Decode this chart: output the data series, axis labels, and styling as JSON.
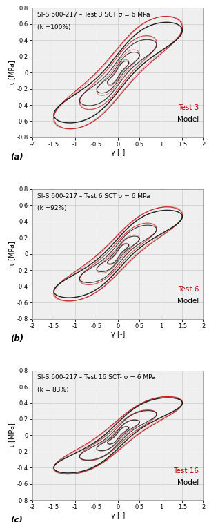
{
  "panels": [
    {
      "title_line1": "SI-S 600-217 – Test 3 SCT σ = 6 MPa",
      "title_line2": "(k =100%)",
      "test_label": "Test 3",
      "panel_label": "(a)",
      "max_tau_red": 0.56,
      "max_tau_black": 0.52,
      "belly_red": 0.55,
      "belly_black": 0.45,
      "k_shape_red": 1.8,
      "k_shape_black": 2.2
    },
    {
      "title_line1": "SI-S 600-217 – Test 6 SCT σ = 6 MPa",
      "title_line2": "(k =92%)",
      "test_label": "Test 6",
      "panel_label": "(b)",
      "max_tau_red": 0.48,
      "max_tau_black": 0.46,
      "belly_red": 0.5,
      "belly_black": 0.42,
      "k_shape_red": 1.8,
      "k_shape_black": 2.2
    },
    {
      "title_line1": "SI-S 600-217 – Test 16 SCT- σ = 6 MPa",
      "title_line2": "(k = 83%)",
      "test_label": "Test 16",
      "panel_label": "(c)",
      "max_tau_red": 0.4,
      "max_tau_black": 0.4,
      "belly_red": 0.48,
      "belly_black": 0.4,
      "k_shape_red": 1.8,
      "k_shape_black": 2.2
    }
  ],
  "xlim": [
    -2,
    2
  ],
  "ylim": [
    -0.8,
    0.8
  ],
  "xticks": [
    -2,
    -1.5,
    -1,
    -0.5,
    0,
    0.5,
    1,
    1.5,
    2
  ],
  "yticks": [
    -0.8,
    -0.6,
    -0.4,
    -0.2,
    0,
    0.2,
    0.4,
    0.6,
    0.8
  ],
  "loop_scales": [
    0.25,
    0.5,
    0.9,
    1.5
  ],
  "max_gamma": 1.5,
  "red_color": "#bb0000",
  "black_color": "#111111",
  "background_color": "#efefef",
  "grid_color": "#cccccc",
  "xlabel": "γ [-]",
  "ylabel": "τ [MPa]",
  "lw_red": 0.85,
  "lw_black": 0.95,
  "tick_fontsize": 6.0,
  "label_fontsize": 7.0,
  "title_fontsize": 6.5,
  "legend_fontsize": 7.5
}
